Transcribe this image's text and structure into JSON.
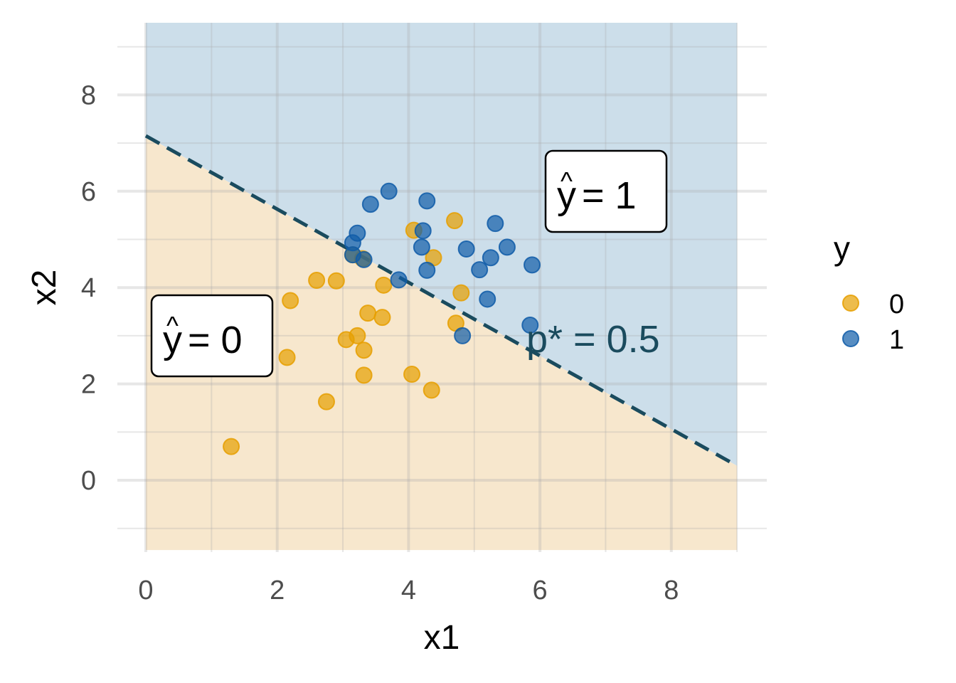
{
  "chart_data": {
    "type": "scatter",
    "title": "",
    "xlabel": "x1",
    "ylabel": "x2",
    "xlim": [
      -0.4,
      9.4
    ],
    "ylim": [
      -1.45,
      9.5
    ],
    "panel_x_extent": [
      0,
      9
    ],
    "xticks": [
      0,
      2,
      4,
      6,
      8
    ],
    "yticks": [
      0,
      2,
      4,
      6,
      8
    ],
    "grid": true,
    "legend": {
      "title": "y",
      "position": "right",
      "entries": [
        {
          "label": "0",
          "color": "#E69F00"
        },
        {
          "label": "1",
          "color": "#0F5CA8"
        }
      ]
    },
    "decision_boundary": {
      "label": "p* = 0.5",
      "style": "dashed",
      "color": "#1A4B5E",
      "points": [
        [
          0,
          7.15
        ],
        [
          9,
          0.3
        ]
      ]
    },
    "regions": [
      {
        "name": "y-hat-1",
        "label_hat": "^",
        "label_var": "y",
        "label_rest": " = 1",
        "fill": "#CCDEEA",
        "anchor": [
          7.1,
          6.0
        ]
      },
      {
        "name": "y-hat-0",
        "label_hat": "^",
        "label_var": "y",
        "label_rest": " = 0",
        "fill": "#F7E7CD",
        "anchor": [
          1.0,
          3.0
        ]
      }
    ],
    "series": [
      {
        "name": "0",
        "color": "#E69F00",
        "points": [
          [
            1.3,
            0.7
          ],
          [
            2.15,
            2.55
          ],
          [
            2.2,
            3.73
          ],
          [
            2.6,
            4.15
          ],
          [
            2.9,
            4.14
          ],
          [
            2.75,
            1.63
          ],
          [
            3.05,
            2.92
          ],
          [
            3.22,
            3.0
          ],
          [
            3.32,
            2.7
          ],
          [
            3.32,
            2.18
          ],
          [
            3.38,
            3.47
          ],
          [
            3.6,
            3.38
          ],
          [
            3.62,
            4.05
          ],
          [
            4.05,
            2.2
          ],
          [
            4.35,
            1.87
          ],
          [
            4.08,
            5.19
          ],
          [
            4.38,
            4.62
          ],
          [
            4.7,
            5.39
          ],
          [
            4.72,
            3.26
          ],
          [
            4.8,
            3.89
          ],
          [
            3.15,
            4.68
          ],
          [
            3.3,
            4.6
          ]
        ]
      },
      {
        "name": "1",
        "color": "#0F5CA8",
        "points": [
          [
            3.15,
            4.93
          ],
          [
            3.22,
            5.13
          ],
          [
            3.32,
            4.58
          ],
          [
            3.15,
            4.68
          ],
          [
            3.42,
            5.73
          ],
          [
            3.7,
            6.0
          ],
          [
            3.85,
            4.16
          ],
          [
            4.22,
            5.18
          ],
          [
            4.2,
            4.84
          ],
          [
            4.28,
            4.36
          ],
          [
            4.28,
            5.8
          ],
          [
            4.88,
            4.8
          ],
          [
            5.08,
            4.37
          ],
          [
            5.2,
            3.76
          ],
          [
            5.25,
            4.62
          ],
          [
            5.32,
            5.33
          ],
          [
            5.5,
            4.84
          ],
          [
            5.88,
            4.47
          ],
          [
            5.85,
            3.22
          ],
          [
            4.82,
            3.0
          ]
        ]
      }
    ]
  }
}
